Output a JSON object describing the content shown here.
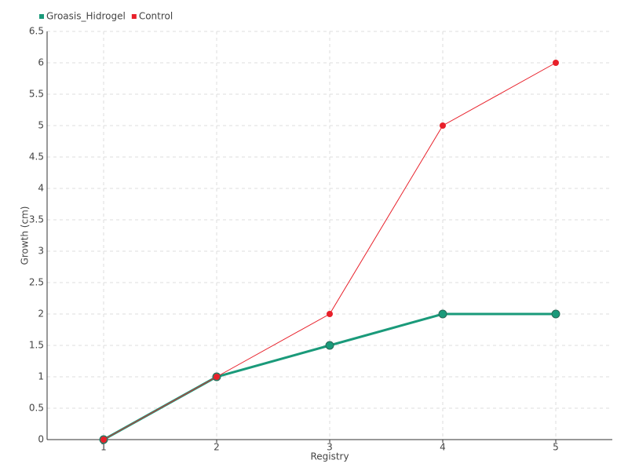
{
  "chart_data": {
    "type": "line",
    "x_label": "Registry",
    "y_label": "Growth (cm)",
    "x": [
      1,
      2,
      3,
      4,
      5
    ],
    "xlim": [
      0.5,
      5.5
    ],
    "xticks": [
      1,
      2,
      3,
      4,
      5
    ],
    "ylim": [
      0,
      6.5
    ],
    "yticks": [
      0,
      0.5,
      1,
      1.5,
      2,
      2.5,
      3,
      3.5,
      4,
      4.5,
      5,
      5.5,
      6,
      6.5
    ],
    "grid": true,
    "legend": "top-left",
    "series": [
      {
        "name": "Groasis_Hidrogel",
        "color": "#1a9a7a",
        "values": [
          0,
          1,
          1.5,
          2,
          2
        ]
      },
      {
        "name": "Control",
        "color": "#e8202a",
        "values": [
          0,
          1,
          2,
          5,
          6
        ]
      }
    ]
  }
}
